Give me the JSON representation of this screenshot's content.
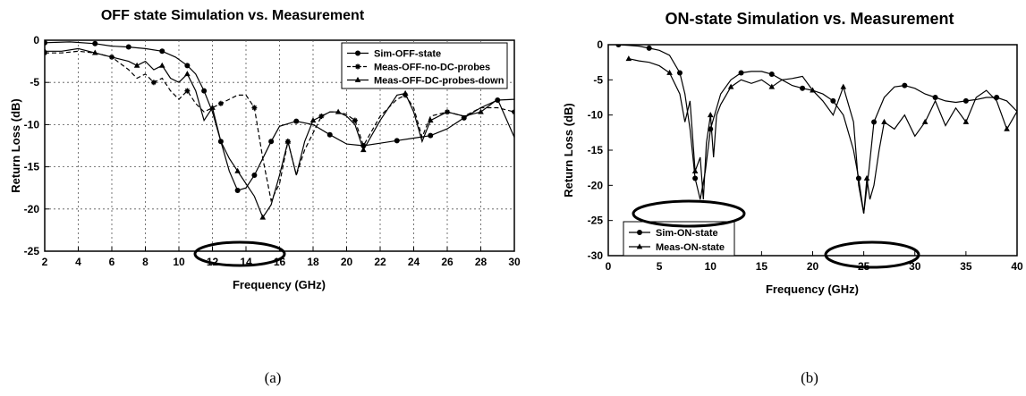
{
  "chart_data": [
    {
      "type": "line",
      "title": "OFF state Simulation vs. Measurement",
      "xlabel": "Frequency (GHz)",
      "ylabel": "Return Loss (dB)",
      "xlim": [
        2,
        30
      ],
      "ylim": [
        -25,
        0
      ],
      "xticks": [
        2,
        4,
        6,
        8,
        10,
        12,
        14,
        16,
        18,
        20,
        22,
        24,
        26,
        28,
        30
      ],
      "yticks": [
        0,
        -5,
        -10,
        -15,
        -20,
        -25
      ],
      "grid": true,
      "legend_position": "top-right",
      "caption": "(a)",
      "series": [
        {
          "name": "Sim-OFF-state",
          "marker": "circle",
          "dash": "solid",
          "x": [
            2,
            3.5,
            5,
            6,
            7,
            8,
            9,
            9.8,
            10.5,
            11,
            11.5,
            12,
            12.5,
            13,
            13.5,
            14,
            14.5,
            15,
            15.5,
            16,
            17,
            18,
            19,
            20,
            21,
            22,
            23,
            24,
            25,
            26,
            27,
            28,
            29,
            30
          ],
          "y": [
            -0.3,
            -0.2,
            -0.4,
            -0.7,
            -0.8,
            -1.0,
            -1.3,
            -2.0,
            -3.0,
            -4.0,
            -6.0,
            -8.5,
            -12.0,
            -15.5,
            -17.8,
            -17.5,
            -16.0,
            -14.0,
            -12.0,
            -10.2,
            -9.6,
            -10.0,
            -11.2,
            -12.3,
            -12.5,
            -12.2,
            -11.9,
            -11.6,
            -11.3,
            -10.5,
            -9.2,
            -8.0,
            -7.1,
            -7.0
          ]
        },
        {
          "name": "Meas-OFF-no-DC-probes",
          "marker": "star",
          "dash": "dashed",
          "x": [
            2,
            3,
            4,
            5,
            6,
            7,
            7.5,
            8,
            8.5,
            9,
            9.5,
            10,
            10.5,
            11,
            11.5,
            12,
            12.5,
            13,
            13.5,
            14,
            14.5,
            15,
            15.5,
            16,
            16.5,
            17,
            17.5,
            18,
            18.5,
            19,
            19.5,
            20,
            20.5,
            21,
            22,
            23,
            23.5,
            24,
            24.5,
            25,
            26,
            27,
            28,
            29,
            30
          ],
          "y": [
            -1.5,
            -1.5,
            -1.3,
            -1.5,
            -2.0,
            -3.5,
            -4.5,
            -4.0,
            -5.0,
            -4.5,
            -6.0,
            -7.0,
            -6.0,
            -7.5,
            -8.5,
            -8.0,
            -7.5,
            -7.0,
            -6.5,
            -6.5,
            -8.0,
            -14.0,
            -19.0,
            -17.0,
            -12.0,
            -16.0,
            -13.0,
            -11.0,
            -9.0,
            -8.5,
            -8.5,
            -8.8,
            -9.5,
            -12.5,
            -9.0,
            -7.0,
            -6.5,
            -8.0,
            -11.5,
            -9.0,
            -8.5,
            -9.0,
            -8.0,
            -8.0,
            -8.5
          ]
        },
        {
          "name": "Meas-OFF-DC-probes-down",
          "marker": "triangle",
          "dash": "solid",
          "x": [
            2,
            3,
            4,
            5,
            6,
            7,
            7.5,
            8,
            8.5,
            9,
            9.5,
            10,
            10.5,
            11,
            11.5,
            12,
            12.5,
            13,
            13.5,
            14,
            14.5,
            15,
            15.5,
            16,
            16.5,
            17,
            17.5,
            18,
            18.5,
            19,
            19.5,
            20,
            20.5,
            21,
            22,
            23,
            23.5,
            24,
            24.5,
            25,
            26,
            27,
            28,
            29,
            30
          ],
          "y": [
            -1.3,
            -1.3,
            -1.0,
            -1.5,
            -2.0,
            -2.5,
            -3.0,
            -2.5,
            -3.5,
            -3.0,
            -4.5,
            -5.0,
            -4.0,
            -6.0,
            -9.5,
            -8.0,
            -12.0,
            -14.0,
            -15.5,
            -17.0,
            -18.5,
            -21.0,
            -19.5,
            -16.0,
            -12.0,
            -16.0,
            -12.0,
            -9.5,
            -9.0,
            -8.5,
            -8.5,
            -9.0,
            -10.0,
            -13.0,
            -9.5,
            -6.5,
            -6.3,
            -8.5,
            -12.0,
            -9.5,
            -8.5,
            -9.0,
            -8.5,
            -7.0,
            -11.5
          ]
        }
      ]
    },
    {
      "type": "line",
      "title": "ON-state Simulation vs. Measurement",
      "xlabel": "Frequency (GHz)",
      "ylabel": "Return Loss (dB)",
      "xlim": [
        0,
        40
      ],
      "ylim": [
        -30,
        0
      ],
      "xticks": [
        0,
        5,
        10,
        15,
        20,
        25,
        30,
        35,
        40
      ],
      "yticks": [
        0,
        -5,
        -10,
        -15,
        -20,
        -25,
        -30
      ],
      "grid": false,
      "legend_position": "bottom-left",
      "caption": "(b)",
      "series": [
        {
          "name": "Sim-ON-state",
          "marker": "circle",
          "dash": "solid",
          "x": [
            1,
            2,
            3,
            4,
            5,
            6,
            7,
            7.5,
            8,
            8.5,
            9,
            9.5,
            10,
            11,
            12,
            13,
            14,
            15,
            16,
            17,
            18,
            19,
            20,
            21,
            22,
            23,
            24,
            24.5,
            25,
            25.5,
            26,
            27,
            28,
            29,
            30,
            31,
            32,
            33,
            34,
            35,
            36,
            37,
            38,
            39,
            40
          ],
          "y": [
            0,
            -0.1,
            -0.2,
            -0.5,
            -0.8,
            -1.5,
            -4.0,
            -7.0,
            -12.0,
            -19.0,
            -22.0,
            -18.0,
            -12.0,
            -7.0,
            -5.0,
            -4.0,
            -3.8,
            -3.8,
            -4.2,
            -5.0,
            -5.8,
            -6.2,
            -6.5,
            -7.0,
            -8.0,
            -10.0,
            -15.0,
            -19.0,
            -24.0,
            -18.0,
            -11.0,
            -7.5,
            -6.0,
            -5.8,
            -6.2,
            -7.0,
            -7.5,
            -8.0,
            -8.2,
            -8.0,
            -7.8,
            -7.5,
            -7.5,
            -8.0,
            -9.5
          ]
        },
        {
          "name": "Meas-ON-state",
          "marker": "triangle",
          "dash": "solid",
          "x": [
            2,
            3,
            4,
            5,
            6,
            7,
            7.5,
            8,
            8.5,
            9,
            9.3,
            9.6,
            10,
            10.3,
            10.6,
            11,
            12,
            13,
            14,
            15,
            16,
            17,
            18,
            19,
            20,
            21,
            22,
            22.5,
            23,
            24,
            24.5,
            25,
            25.3,
            25.6,
            26,
            26.5,
            27,
            28,
            29,
            30,
            31,
            32,
            33,
            34,
            35,
            36,
            37,
            38,
            39,
            40
          ],
          "y": [
            -2.0,
            -2.3,
            -2.5,
            -3.0,
            -4.0,
            -7.0,
            -11.0,
            -8.0,
            -18.0,
            -16.0,
            -22.0,
            -14.0,
            -10.0,
            -16.0,
            -10.0,
            -8.5,
            -6.0,
            -5.0,
            -5.5,
            -5.0,
            -6.0,
            -5.0,
            -4.8,
            -4.5,
            -6.5,
            -8.0,
            -10.0,
            -8.0,
            -6.0,
            -11.0,
            -20.0,
            -24.0,
            -19.0,
            -22.0,
            -20.0,
            -15.0,
            -11.0,
            -12.0,
            -10.0,
            -13.0,
            -11.0,
            -8.0,
            -11.5,
            -9.0,
            -11.0,
            -7.5,
            -6.5,
            -8.0,
            -12.0,
            -9.5
          ]
        }
      ]
    }
  ]
}
